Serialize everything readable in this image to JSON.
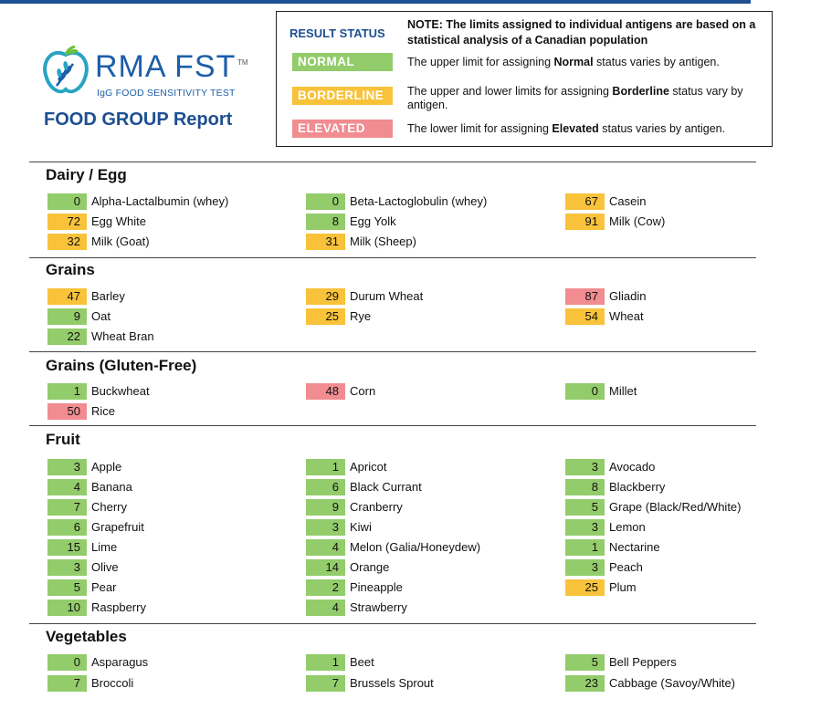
{
  "header": {
    "brand": "RMA FST",
    "tm": "TM",
    "subtitle": "IgG FOOD SENSITIVITY TEST",
    "report_title": "FOOD GROUP Report"
  },
  "legend": {
    "result_status_label": "RESULT STATUS",
    "note": "NOTE: The limits assigned to individual antigens are based on a statistical analysis of a Canadian population",
    "statuses": [
      {
        "label": "NORMAL",
        "pre": "The upper limit for assigning ",
        "bold": "Normal",
        "post": " status varies by antigen.",
        "color": "#93cc6b"
      },
      {
        "label": "BORDERLINE",
        "pre": "The upper and lower limits for assigning ",
        "bold": "Borderline",
        "post": " status vary by antigen.",
        "color": "#f8c23a"
      },
      {
        "label": "ELEVATED",
        "pre": "The lower limit for assigning ",
        "bold": "Elevated",
        "post": " status varies by antigen.",
        "color": "#f18c91"
      }
    ]
  },
  "sections": [
    {
      "title": "Dairy / Egg",
      "items": [
        {
          "value": "0",
          "name": "Alpha-Lactalbumin (whey)",
          "status": "normal"
        },
        {
          "value": "0",
          "name": "Beta-Lactoglobulin (whey)",
          "status": "normal"
        },
        {
          "value": "67",
          "name": "Casein",
          "status": "borderline"
        },
        {
          "value": "72",
          "name": "Egg White",
          "status": "borderline"
        },
        {
          "value": "8",
          "name": "Egg Yolk",
          "status": "normal"
        },
        {
          "value": "91",
          "name": "Milk (Cow)",
          "status": "borderline"
        },
        {
          "value": "32",
          "name": "Milk (Goat)",
          "status": "borderline"
        },
        {
          "value": "31",
          "name": "Milk (Sheep)",
          "status": "borderline"
        }
      ]
    },
    {
      "title": "Grains",
      "items": [
        {
          "value": "47",
          "name": "Barley",
          "status": "borderline"
        },
        {
          "value": "29",
          "name": "Durum Wheat",
          "status": "borderline"
        },
        {
          "value": "87",
          "name": "Gliadin",
          "status": "elevated"
        },
        {
          "value": "9",
          "name": "Oat",
          "status": "normal"
        },
        {
          "value": "25",
          "name": "Rye",
          "status": "borderline"
        },
        {
          "value": "54",
          "name": "Wheat",
          "status": "borderline"
        },
        {
          "value": "22",
          "name": "Wheat Bran",
          "status": "normal"
        }
      ]
    },
    {
      "title": "Grains (Gluten-Free)",
      "items": [
        {
          "value": "1",
          "name": "Buckwheat",
          "status": "normal"
        },
        {
          "value": "48",
          "name": "Corn",
          "status": "elevated"
        },
        {
          "value": "0",
          "name": "Millet",
          "status": "normal"
        },
        {
          "value": "50",
          "name": "Rice",
          "status": "elevated"
        }
      ]
    },
    {
      "title": "Fruit",
      "items": [
        {
          "value": "3",
          "name": "Apple",
          "status": "normal"
        },
        {
          "value": "1",
          "name": "Apricot",
          "status": "normal"
        },
        {
          "value": "3",
          "name": "Avocado",
          "status": "normal"
        },
        {
          "value": "4",
          "name": "Banana",
          "status": "normal"
        },
        {
          "value": "6",
          "name": "Black Currant",
          "status": "normal"
        },
        {
          "value": "8",
          "name": "Blackberry",
          "status": "normal"
        },
        {
          "value": "7",
          "name": "Cherry",
          "status": "normal"
        },
        {
          "value": "9",
          "name": "Cranberry",
          "status": "normal"
        },
        {
          "value": "5",
          "name": "Grape (Black/Red/White)",
          "status": "normal"
        },
        {
          "value": "6",
          "name": "Grapefruit",
          "status": "normal"
        },
        {
          "value": "3",
          "name": "Kiwi",
          "status": "normal"
        },
        {
          "value": "3",
          "name": "Lemon",
          "status": "normal"
        },
        {
          "value": "15",
          "name": "Lime",
          "status": "normal"
        },
        {
          "value": "4",
          "name": "Melon (Galia/Honeydew)",
          "status": "normal"
        },
        {
          "value": "1",
          "name": "Nectarine",
          "status": "normal"
        },
        {
          "value": "3",
          "name": "Olive",
          "status": "normal"
        },
        {
          "value": "14",
          "name": "Orange",
          "status": "normal"
        },
        {
          "value": "3",
          "name": "Peach",
          "status": "normal"
        },
        {
          "value": "5",
          "name": "Pear",
          "status": "normal"
        },
        {
          "value": "2",
          "name": "Pineapple",
          "status": "normal"
        },
        {
          "value": "25",
          "name": "Plum",
          "status": "borderline"
        },
        {
          "value": "10",
          "name": "Raspberry",
          "status": "normal"
        },
        {
          "value": "4",
          "name": "Strawberry",
          "status": "normal"
        }
      ]
    },
    {
      "title": "Vegetables",
      "items": [
        {
          "value": "0",
          "name": "Asparagus",
          "status": "normal"
        },
        {
          "value": "1",
          "name": "Beet",
          "status": "normal"
        },
        {
          "value": "5",
          "name": "Bell Peppers",
          "status": "normal"
        },
        {
          "value": "7",
          "name": "Broccoli",
          "status": "normal"
        },
        {
          "value": "7",
          "name": "Brussels Sprout",
          "status": "normal"
        },
        {
          "value": "23",
          "name": "Cabbage (Savoy/White)",
          "status": "normal"
        }
      ]
    }
  ]
}
